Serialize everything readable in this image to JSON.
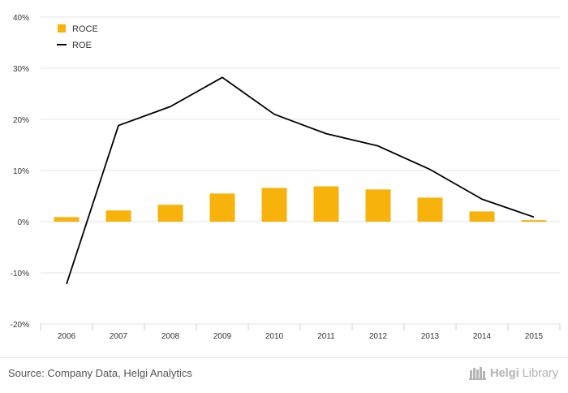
{
  "colors": {
    "roce": "#f7b20c",
    "roe": "#000000",
    "grid": "#e6e6e6",
    "axis_text": "#333333"
  },
  "chart_data": {
    "type": "bar",
    "categories": [
      "2006",
      "2007",
      "2008",
      "2009",
      "2010",
      "2011",
      "2012",
      "2013",
      "2014",
      "2015"
    ],
    "series": [
      {
        "name": "ROCE",
        "type": "bar",
        "values": [
          0.9,
          2.2,
          3.3,
          5.5,
          6.6,
          6.9,
          6.3,
          4.7,
          2.0,
          0.3
        ]
      },
      {
        "name": "ROE",
        "type": "line",
        "values": [
          -12.2,
          18.8,
          22.5,
          28.2,
          21.0,
          17.2,
          14.8,
          10.2,
          4.4,
          0.9
        ]
      }
    ],
    "ylim": [
      -20,
      40
    ],
    "yticks": [
      -20,
      -10,
      0,
      10,
      20,
      30,
      40
    ],
    "ytick_labels": [
      "-20%",
      "-10%",
      "0%",
      "10%",
      "20%",
      "30%",
      "40%"
    ],
    "grid": true,
    "legend_position": "top-left"
  },
  "footer": {
    "source": "Source: Company Data, Helgi Analytics",
    "brand_bold": "Helgi",
    "brand_light": "Library"
  }
}
